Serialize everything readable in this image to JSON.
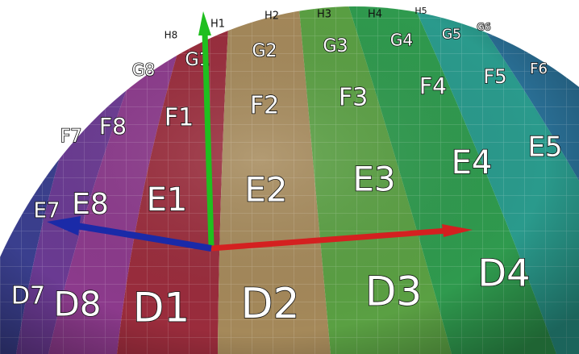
{
  "labels": [
    "H8",
    "H1",
    "H2",
    "H3",
    "H4",
    "H5",
    "G8",
    "G1",
    "G2",
    "G3",
    "G4",
    "G5",
    "G6",
    "F7",
    "F8",
    "F1",
    "F2",
    "F3",
    "F4",
    "F5",
    "F6",
    "E7",
    "E8",
    "E1",
    "E2",
    "E3",
    "E4",
    "E5",
    "D7",
    "D8",
    "D1",
    "D2",
    "D3",
    "D4"
  ]
}
